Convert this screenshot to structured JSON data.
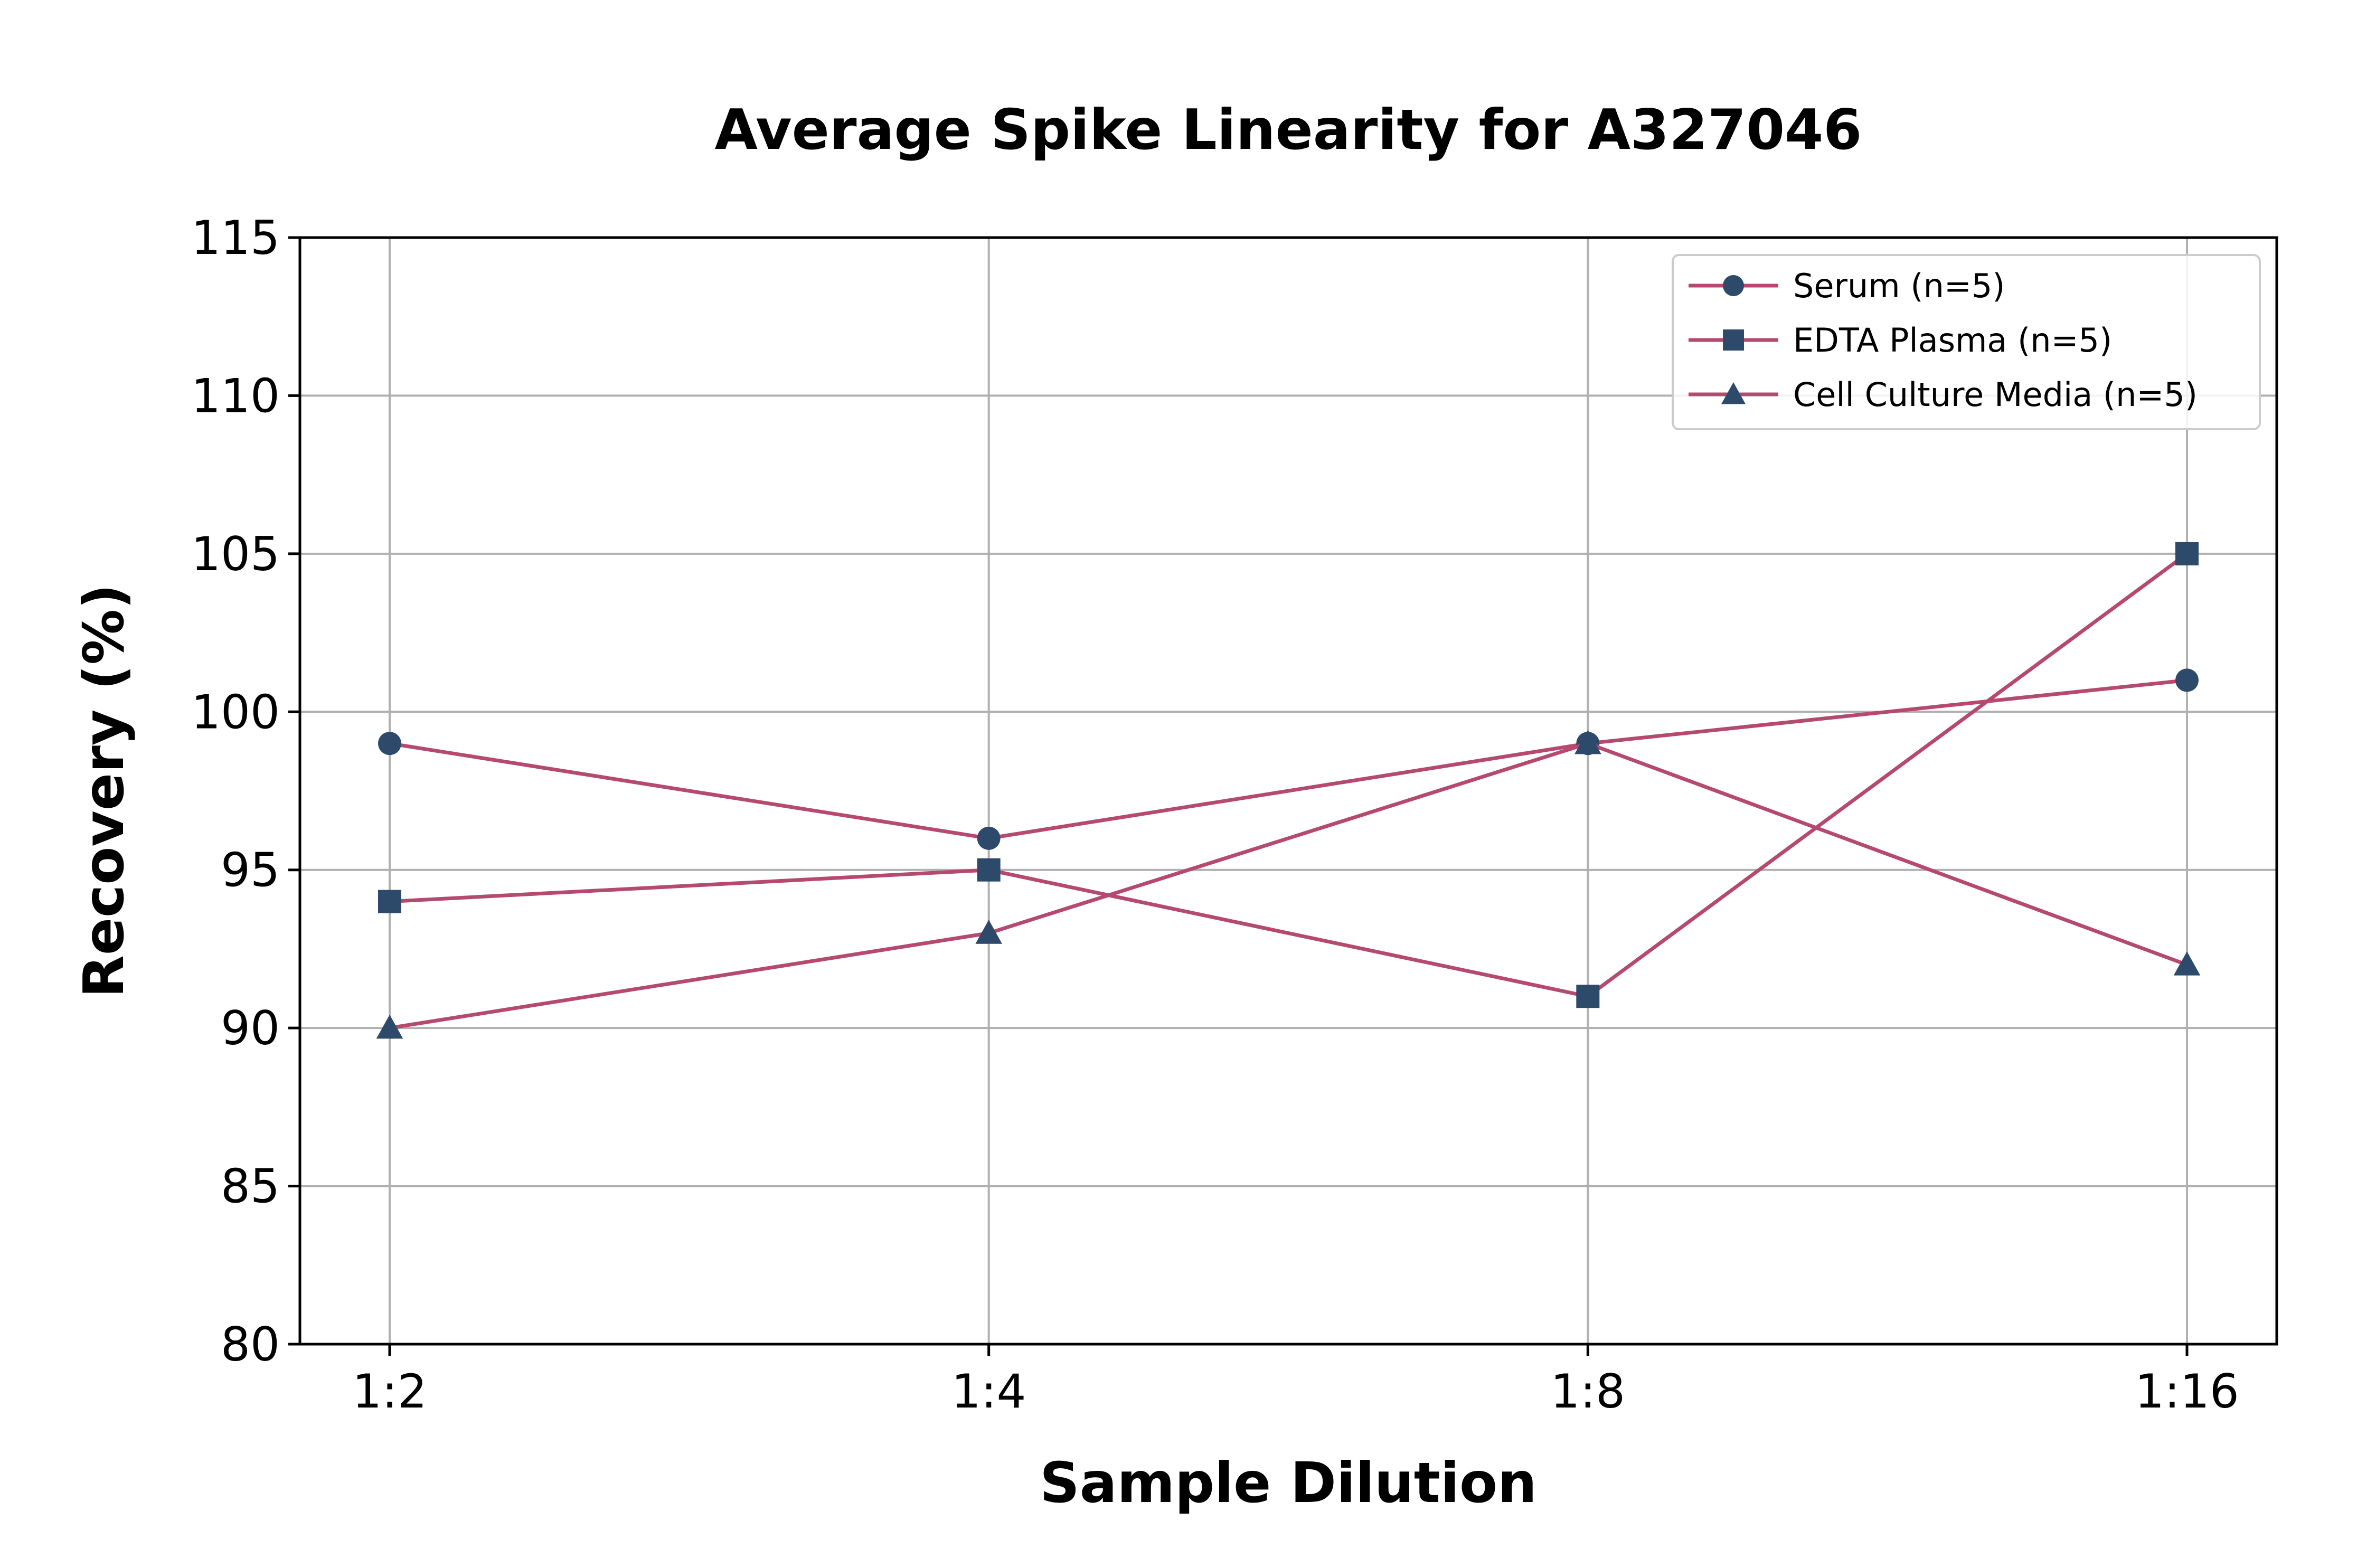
{
  "chart_data": {
    "type": "line",
    "title": "Average Spike Linearity for A327046",
    "xlabel": "Sample Dilution",
    "ylabel": "Recovery (%)",
    "categories": [
      "1:2",
      "1:4",
      "1:8",
      "1:16"
    ],
    "ylim": [
      80,
      115
    ],
    "yticks": [
      80,
      85,
      90,
      95,
      100,
      105,
      110,
      115
    ],
    "grid": true,
    "legend_position": "top-right",
    "line_color": "#b5496f",
    "marker_color": "#2e4a6b",
    "series": [
      {
        "name": "Serum (n=5)",
        "marker": "circle",
        "values": [
          99,
          96,
          99,
          101
        ]
      },
      {
        "name": "EDTA Plasma (n=5)",
        "marker": "square",
        "values": [
          94,
          95,
          91,
          105
        ]
      },
      {
        "name": "Cell Culture Media (n=5)",
        "marker": "triangle",
        "values": [
          90,
          93,
          99,
          92
        ]
      }
    ]
  }
}
